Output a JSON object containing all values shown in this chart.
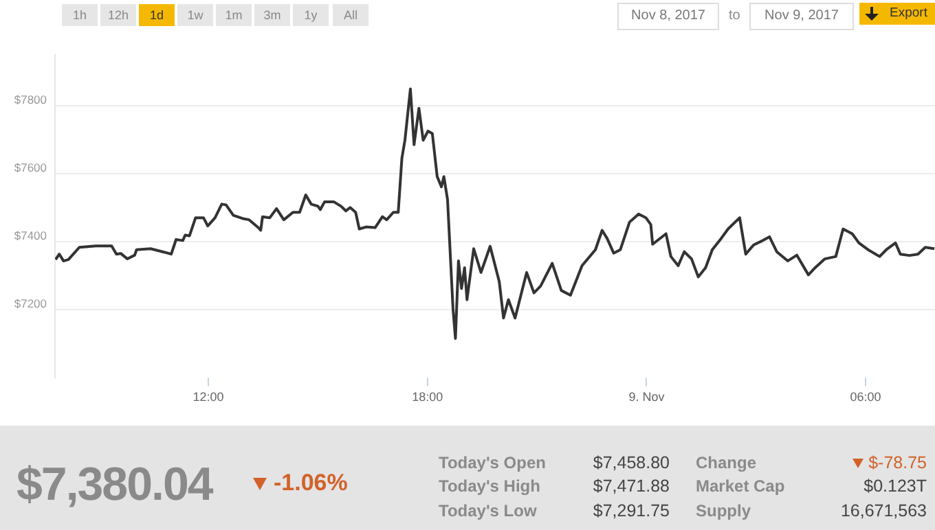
{
  "chart_data": {
    "type": "line",
    "color": "#333333",
    "grid": "y",
    "legend": false,
    "marker": "none",
    "line_style": "solid",
    "x": [
      "2017-11-08T07:49",
      "2017-11-08T07:55",
      "2017-11-08T08:02",
      "2017-11-08T08:10",
      "2017-11-08T08:28",
      "2017-11-08T08:55",
      "2017-11-08T09:21",
      "2017-11-08T09:29",
      "2017-11-08T09:36",
      "2017-11-08T09:47",
      "2017-11-08T09:59",
      "2017-11-08T10:02",
      "2017-11-08T10:25",
      "2017-11-08T10:47",
      "2017-11-08T10:59",
      "2017-11-08T11:07",
      "2017-11-08T11:18",
      "2017-11-08T11:22",
      "2017-11-08T11:29",
      "2017-11-08T11:39",
      "2017-11-08T11:52",
      "2017-11-08T11:59",
      "2017-11-08T12:11",
      "2017-11-08T12:22",
      "2017-11-08T12:29",
      "2017-11-08T12:41",
      "2017-11-08T12:56",
      "2017-11-08T13:07",
      "2017-11-08T13:22",
      "2017-11-08T13:26",
      "2017-11-08T13:29",
      "2017-11-08T13:41",
      "2017-11-08T13:52",
      "2017-11-08T14:04",
      "2017-11-08T14:19",
      "2017-11-08T14:30",
      "2017-11-08T14:40",
      "2017-11-08T14:49",
      "2017-11-08T15:00",
      "2017-11-08T15:04",
      "2017-11-08T15:11",
      "2017-11-08T15:26",
      "2017-11-08T15:38",
      "2017-11-08T15:46",
      "2017-11-08T15:53",
      "2017-11-08T16:02",
      "2017-11-08T16:08",
      "2017-11-08T16:19",
      "2017-11-08T16:34",
      "2017-11-08T16:46",
      "2017-11-08T16:53",
      "2017-11-08T17:04",
      "2017-11-08T17:12",
      "2017-11-08T17:18",
      "2017-11-08T17:23",
      "2017-11-08T17:32",
      "2017-11-08T17:38",
      "2017-11-08T17:46",
      "2017-11-08T17:53",
      "2017-11-08T18:01",
      "2017-11-08T18:08",
      "2017-11-08T18:16",
      "2017-11-08T18:23",
      "2017-11-08T18:27",
      "2017-11-08T18:33",
      "2017-11-08T18:42",
      "2017-11-08T18:46",
      "2017-11-08T18:51",
      "2017-11-08T18:56",
      "2017-11-08T19:01",
      "2017-11-08T19:05",
      "2017-11-08T19:16",
      "2017-11-08T19:28",
      "2017-11-08T19:43",
      "2017-11-08T19:58",
      "2017-11-08T20:05",
      "2017-11-08T20:13",
      "2017-11-08T20:24",
      "2017-11-08T20:43",
      "2017-11-08T20:55",
      "2017-11-08T21:06",
      "2017-11-08T21:25",
      "2017-11-08T21:40",
      "2017-11-08T21:55",
      "2017-11-08T22:14",
      "2017-11-08T22:36",
      "2017-11-08T22:47",
      "2017-11-08T22:55",
      "2017-11-08T23:06",
      "2017-11-08T23:17",
      "2017-11-08T23:32",
      "2017-11-08T23:47",
      "2017-11-08T23:59",
      "2017-11-09T00:07",
      "2017-11-09T00:10",
      "2017-11-09T00:32",
      "2017-11-09T00:40",
      "2017-11-09T00:52",
      "2017-11-09T01:02",
      "2017-11-09T01:14",
      "2017-11-09T01:25",
      "2017-11-09T01:37",
      "2017-11-09T01:48",
      "2017-11-09T02:03",
      "2017-11-09T02:14",
      "2017-11-09T02:33",
      "2017-11-09T02:43",
      "2017-11-09T02:56",
      "2017-11-09T03:11",
      "2017-11-09T03:22",
      "2017-11-09T03:34",
      "2017-11-09T03:52",
      "2017-11-09T04:07",
      "2017-11-09T04:26",
      "2017-11-09T04:37",
      "2017-11-09T04:53",
      "2017-11-09T05:11",
      "2017-11-09T05:23",
      "2017-11-09T05:38",
      "2017-11-09T05:49",
      "2017-11-09T06:04",
      "2017-11-09T06:23",
      "2017-11-09T06:34",
      "2017-11-09T06:49",
      "2017-11-09T06:57",
      "2017-11-09T07:12",
      "2017-11-09T07:26",
      "2017-11-09T07:38",
      "2017-11-09T07:53"
    ],
    "values": [
      7348,
      7364,
      7344,
      7348,
      7384,
      7388,
      7388,
      7364,
      7366,
      7350,
      7361,
      7377,
      7380,
      7370,
      7364,
      7407,
      7404,
      7420,
      7418,
      7471,
      7471,
      7447,
      7471,
      7511,
      7509,
      7478,
      7469,
      7465,
      7442,
      7434,
      7474,
      7471,
      7498,
      7465,
      7487,
      7487,
      7538,
      7511,
      7505,
      7495,
      7518,
      7518,
      7505,
      7491,
      7501,
      7487,
      7438,
      7444,
      7442,
      7474,
      7465,
      7487,
      7487,
      7646,
      7699,
      7850,
      7686,
      7793,
      7699,
      7726,
      7719,
      7592,
      7562,
      7592,
      7525,
      7203,
      7116,
      7344,
      7263,
      7324,
      7230,
      7380,
      7310,
      7387,
      7283,
      7176,
      7230,
      7176,
      7310,
      7250,
      7270,
      7337,
      7257,
      7243,
      7330,
      7377,
      7434,
      7411,
      7367,
      7377,
      7458,
      7482,
      7471,
      7451,
      7393,
      7424,
      7357,
      7330,
      7371,
      7350,
      7297,
      7324,
      7377,
      7411,
      7438,
      7471,
      7364,
      7391,
      7404,
      7415,
      7371,
      7344,
      7361,
      7303,
      7324,
      7350,
      7357,
      7438,
      7424,
      7397,
      7377,
      7357,
      7377,
      7397,
      7364,
      7360,
      7364,
      7384,
      7380
    ],
    "xlim": [
      "2017-11-08T07:48",
      "2017-11-09T07:54"
    ],
    "xticks": [
      {
        "value": "2017-11-08T12:00",
        "label": "12:00"
      },
      {
        "value": "2017-11-08T18:00",
        "label": "18:00"
      },
      {
        "value": "2017-11-09",
        "label": "9. Nov"
      },
      {
        "value": "2017-11-09T06:00",
        "label": "06:00"
      }
    ],
    "ylim": [
      7000,
      7950
    ],
    "yticks": [
      {
        "value": 7200,
        "label": "$7200"
      },
      {
        "value": 7400,
        "label": "$7400"
      },
      {
        "value": 7600,
        "label": "$7600"
      },
      {
        "value": 7800,
        "label": "$7800"
      }
    ],
    "annotations": [
      "1h",
      "12h",
      "1d",
      "1w",
      "1m",
      "3m",
      "1y",
      "All",
      "Nov 8, 2017",
      "to",
      "Nov 9, 2017",
      "Export",
      "$7,380.04",
      "-1.06%",
      "Today's Open",
      "$7,458.80",
      "Today's High",
      "$7,471.88",
      "Today's Low",
      "$7,291.75",
      "Change",
      "$-78.75",
      "Market Cap",
      "$0.123T",
      "Supply",
      "16,671,563"
    ]
  }
}
